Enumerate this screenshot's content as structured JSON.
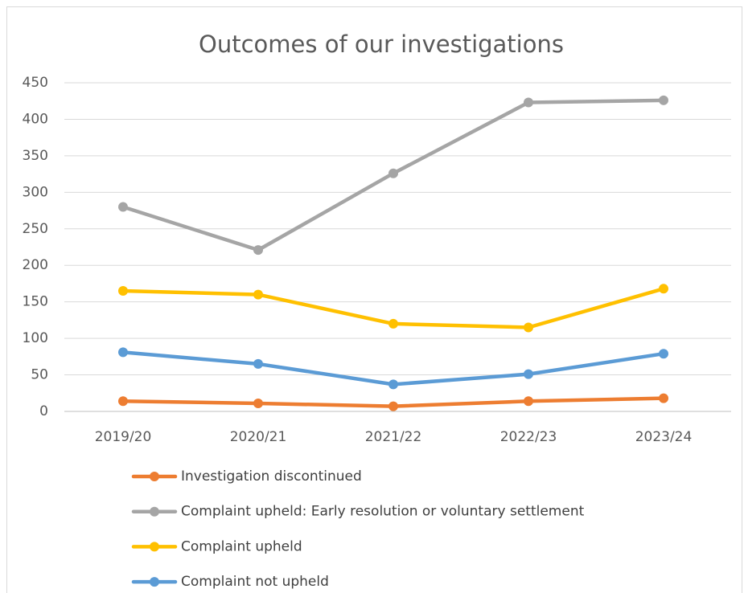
{
  "chart_data": {
    "type": "line",
    "title": "Outcomes of our investigations",
    "categories": [
      "2019/20",
      "2020/21",
      "2021/22",
      "2022/23",
      "2023/24"
    ],
    "series": [
      {
        "name": "Investigation discontinued",
        "color": "#ED7D31",
        "values": [
          14,
          11,
          7,
          14,
          18
        ]
      },
      {
        "name": "Complaint upheld: Early resolution or voluntary settlement",
        "color": "#A5A5A5",
        "values": [
          280,
          221,
          326,
          423,
          426
        ]
      },
      {
        "name": "Complaint upheld",
        "color": "#FFC000",
        "values": [
          165,
          160,
          120,
          115,
          168
        ]
      },
      {
        "name": "Complaint not upheld",
        "color": "#5B9BD5",
        "values": [
          81,
          65,
          37,
          51,
          79
        ]
      }
    ],
    "ylim": [
      0,
      450
    ],
    "yticks": [
      0,
      50,
      100,
      150,
      200,
      250,
      300,
      350,
      400,
      450
    ],
    "grid": true,
    "legend": "bottom"
  }
}
